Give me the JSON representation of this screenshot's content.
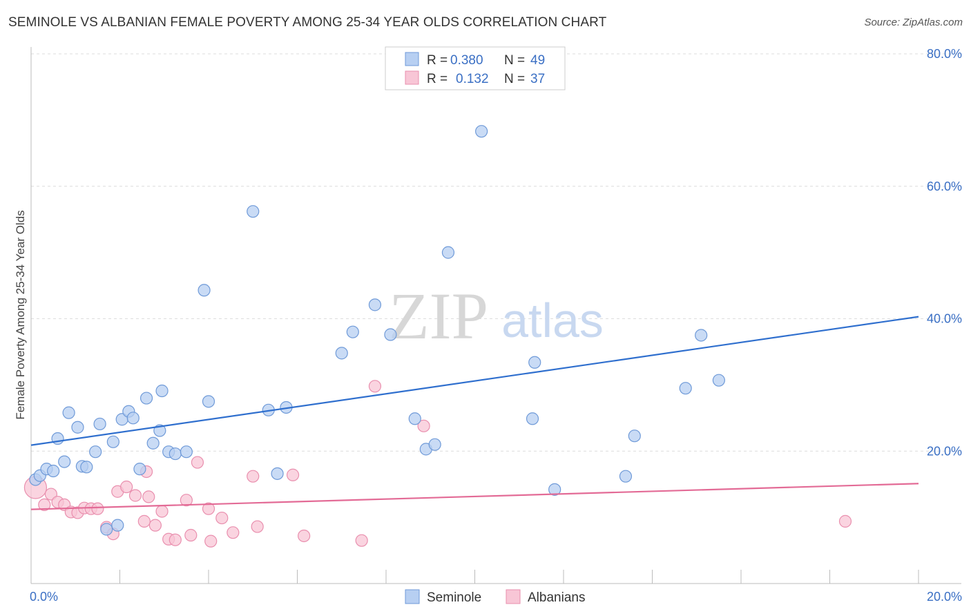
{
  "header": {
    "title": "SEMINOLE VS ALBANIAN FEMALE POVERTY AMONG 25-34 YEAR OLDS CORRELATION CHART",
    "source": "Source: ZipAtlas.com"
  },
  "watermark": {
    "zip": "ZIP",
    "atlas": "atlas"
  },
  "colors": {
    "seminole_fill": "#b7cff2",
    "seminole_stroke": "#6f9ad8",
    "seminole_line": "#2f6fce",
    "albanian_fill": "#f8c6d6",
    "albanian_stroke": "#e98fae",
    "albanian_line": "#e36b96",
    "grid": "#dcdcdc",
    "tick_text": "#3a6fc4"
  },
  "legend": {
    "rows": [
      {
        "r_label": "R =",
        "r_value": "0.380",
        "n_label": "N =",
        "n_value": "49"
      },
      {
        "r_label": "R =",
        "r_value": "0.132",
        "n_label": "N =",
        "n_value": "37"
      }
    ],
    "bottom": [
      "Seminole",
      "Albanians"
    ]
  },
  "chart_data": {
    "type": "scatter",
    "title": "SEMINOLE VS ALBANIAN FEMALE POVERTY AMONG 25-34 YEAR OLDS CORRELATION CHART",
    "xlabel": "",
    "ylabel": "Female Poverty Among 25-34 Year Olds",
    "xlim": [
      0,
      20
    ],
    "ylim": [
      0,
      80
    ],
    "x_tick_labels": [
      "0.0%",
      "20.0%"
    ],
    "y_ticks": [
      20,
      40,
      60,
      80
    ],
    "y_tick_labels": [
      "20.0%",
      "40.0%",
      "60.0%",
      "80.0%"
    ],
    "grid": true,
    "legend_position": "top-center",
    "series": [
      {
        "name": "Seminole",
        "r": 0.38,
        "n": 49,
        "trend": {
          "x": [
            0,
            20
          ],
          "y": [
            20.9,
            40.3
          ]
        },
        "points": [
          [
            0.1,
            15.7
          ],
          [
            0.2,
            16.3
          ],
          [
            0.35,
            17.3
          ],
          [
            0.5,
            17.0
          ],
          [
            0.6,
            21.9
          ],
          [
            0.75,
            18.4
          ],
          [
            0.85,
            25.8
          ],
          [
            1.05,
            23.6
          ],
          [
            1.15,
            17.7
          ],
          [
            1.25,
            17.6
          ],
          [
            1.45,
            19.9
          ],
          [
            1.55,
            24.1
          ],
          [
            1.7,
            8.2
          ],
          [
            1.85,
            21.4
          ],
          [
            1.95,
            8.8
          ],
          [
            2.05,
            24.8
          ],
          [
            2.2,
            26.0
          ],
          [
            2.3,
            25.0
          ],
          [
            2.45,
            17.3
          ],
          [
            2.6,
            28.0
          ],
          [
            2.75,
            21.2
          ],
          [
            2.9,
            23.1
          ],
          [
            2.95,
            29.1
          ],
          [
            3.1,
            19.9
          ],
          [
            3.25,
            19.6
          ],
          [
            3.5,
            19.9
          ],
          [
            3.9,
            44.3
          ],
          [
            4.0,
            27.5
          ],
          [
            5.0,
            56.2
          ],
          [
            5.35,
            26.2
          ],
          [
            5.55,
            16.6
          ],
          [
            5.75,
            26.6
          ],
          [
            7.0,
            34.8
          ],
          [
            7.25,
            38.0
          ],
          [
            7.75,
            42.1
          ],
          [
            8.1,
            37.6
          ],
          [
            8.65,
            24.9
          ],
          [
            8.9,
            20.3
          ],
          [
            9.1,
            21.0
          ],
          [
            9.4,
            50.0
          ],
          [
            10.15,
            68.3
          ],
          [
            11.3,
            24.9
          ],
          [
            11.35,
            33.4
          ],
          [
            11.8,
            14.2
          ],
          [
            13.4,
            16.2
          ],
          [
            13.6,
            22.3
          ],
          [
            14.75,
            29.5
          ],
          [
            15.1,
            37.5
          ],
          [
            15.5,
            30.7
          ]
        ]
      },
      {
        "name": "Albanians",
        "r": 0.132,
        "n": 37,
        "trend": {
          "x": [
            0,
            20
          ],
          "y": [
            11.2,
            15.1
          ]
        },
        "points": [
          [
            0.1,
            14.5
          ],
          [
            0.3,
            11.9
          ],
          [
            0.45,
            13.5
          ],
          [
            0.6,
            12.3
          ],
          [
            0.75,
            11.9
          ],
          [
            0.9,
            10.8
          ],
          [
            1.05,
            10.7
          ],
          [
            1.2,
            11.4
          ],
          [
            1.35,
            11.3
          ],
          [
            1.5,
            11.3
          ],
          [
            1.7,
            8.5
          ],
          [
            1.85,
            7.5
          ],
          [
            1.95,
            13.9
          ],
          [
            2.15,
            14.6
          ],
          [
            2.35,
            13.3
          ],
          [
            2.55,
            9.4
          ],
          [
            2.6,
            16.9
          ],
          [
            2.65,
            13.1
          ],
          [
            2.8,
            8.8
          ],
          [
            2.95,
            10.9
          ],
          [
            3.1,
            6.7
          ],
          [
            3.25,
            6.6
          ],
          [
            3.5,
            12.6
          ],
          [
            3.6,
            7.3
          ],
          [
            3.75,
            18.3
          ],
          [
            4.0,
            11.3
          ],
          [
            4.05,
            6.4
          ],
          [
            4.3,
            9.9
          ],
          [
            4.55,
            7.7
          ],
          [
            5.0,
            16.2
          ],
          [
            5.1,
            8.6
          ],
          [
            5.9,
            16.4
          ],
          [
            6.15,
            7.2
          ],
          [
            7.45,
            6.5
          ],
          [
            7.75,
            29.8
          ],
          [
            8.85,
            23.8
          ],
          [
            18.35,
            9.4
          ]
        ]
      }
    ]
  }
}
